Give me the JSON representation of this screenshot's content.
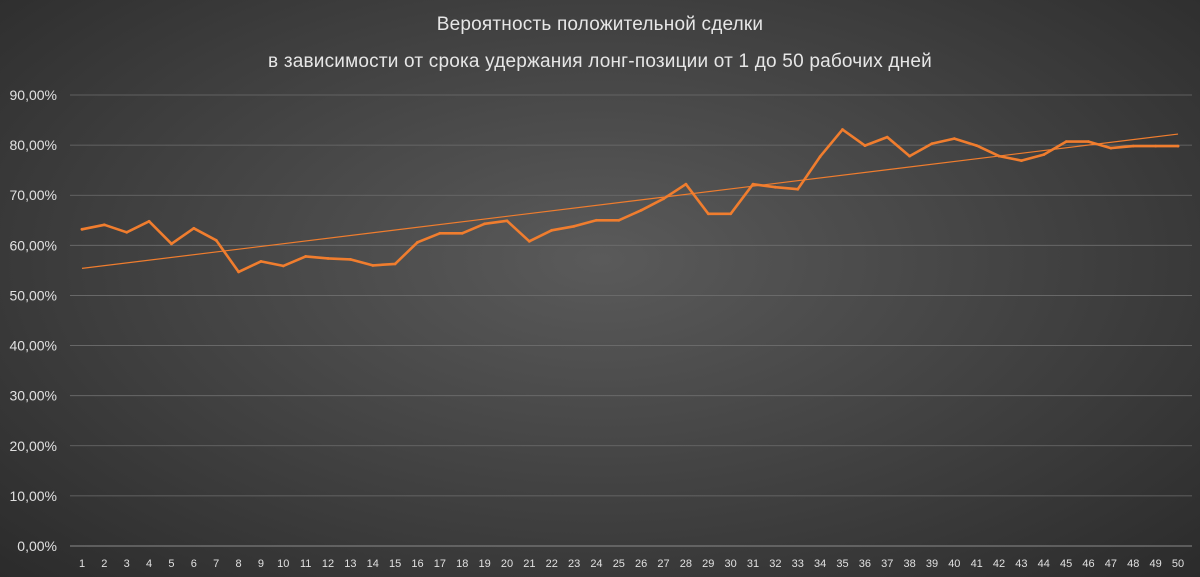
{
  "chart_data": {
    "type": "line",
    "title": "Вероятность положительной сделки",
    "subtitle": "в зависимости от срока удержания лонг-позиции от 1 до 50 рабочих дней",
    "xlabel": "",
    "ylabel": "",
    "ylim": [
      0,
      90
    ],
    "y_ticks": [
      "0,00%",
      "10,00%",
      "20,00%",
      "30,00%",
      "40,00%",
      "50,00%",
      "60,00%",
      "70,00%",
      "80,00%",
      "90,00%"
    ],
    "categories": [
      "1",
      "2",
      "3",
      "4",
      "5",
      "6",
      "7",
      "8",
      "9",
      "10",
      "11",
      "12",
      "13",
      "14",
      "15",
      "16",
      "17",
      "18",
      "19",
      "20",
      "21",
      "22",
      "23",
      "24",
      "25",
      "26",
      "27",
      "28",
      "29",
      "30",
      "31",
      "32",
      "33",
      "34",
      "35",
      "36",
      "37",
      "38",
      "39",
      "40",
      "41",
      "42",
      "43",
      "44",
      "45",
      "46",
      "47",
      "48",
      "49",
      "50"
    ],
    "grid": true,
    "legend": "none",
    "series": [
      {
        "color": "#f07d2e",
        "values": [
          63.2,
          64.1,
          62.6,
          64.8,
          60.3,
          63.4,
          61.0,
          54.7,
          56.8,
          55.9,
          57.8,
          57.4,
          57.2,
          56.0,
          56.3,
          60.6,
          62.4,
          62.4,
          64.3,
          64.9,
          60.8,
          63.0,
          63.8,
          65.0,
          65.0,
          67.0,
          69.3,
          72.2,
          66.3,
          66.3,
          72.2,
          71.6,
          71.2,
          77.7,
          83.1,
          79.9,
          81.6,
          77.8,
          80.3,
          81.3,
          79.9,
          77.8,
          76.9,
          78.1,
          80.7,
          80.7,
          79.4,
          79.8,
          79.8,
          79.8
        ]
      }
    ],
    "trendline": {
      "type": "linear",
      "color": "#f07d2e",
      "start": 55.4,
      "end": 82.2
    }
  }
}
